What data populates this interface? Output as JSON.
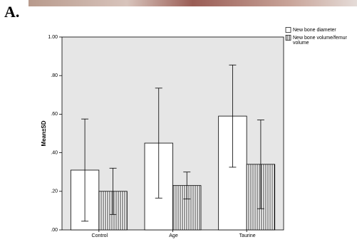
{
  "panel_label": "A.",
  "chart_data": {
    "type": "bar",
    "ylabel": "Mean±SD",
    "categories": [
      "Control",
      "Age",
      "Taurine"
    ],
    "series": [
      {
        "name": "New bone diameter",
        "color": "#ffffff",
        "hatch": false,
        "values": [
          0.31,
          0.45,
          0.59
        ],
        "errors": [
          0.265,
          0.285,
          0.265
        ]
      },
      {
        "name": "New bone volume/femur volume",
        "color": "#ffffff",
        "hatch": true,
        "values": [
          0.2,
          0.23,
          0.34
        ],
        "errors": [
          0.12,
          0.07,
          0.23
        ]
      }
    ],
    "ylim": [
      0,
      1
    ],
    "yticks": [
      {
        "value": 0,
        "label": ".00"
      },
      {
        "value": 0.2,
        "label": ".20"
      },
      {
        "value": 0.4,
        "label": ".40"
      },
      {
        "value": 0.6,
        "label": ".60"
      },
      {
        "value": 0.8,
        "label": ".80"
      },
      {
        "value": 1,
        "label": "1.00"
      }
    ],
    "legend": "right-top",
    "background": "#e6e6e6"
  }
}
